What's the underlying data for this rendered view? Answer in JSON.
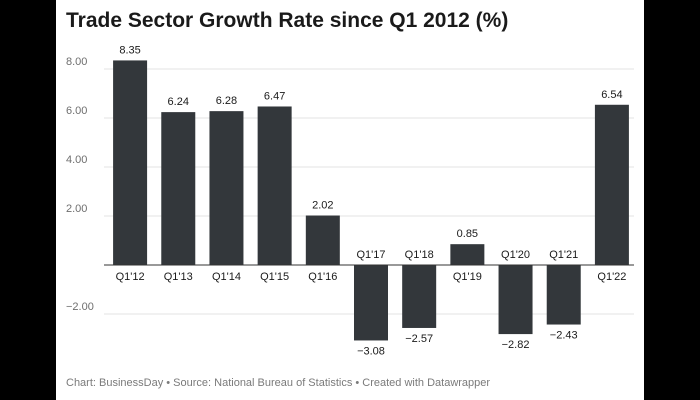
{
  "chart_data": {
    "type": "bar",
    "title": "Trade Sector Growth Rate since Q1 2012 (%)",
    "categories": [
      "Q1'12",
      "Q1'13",
      "Q1'14",
      "Q1'15",
      "Q1'16",
      "Q1'17",
      "Q1'18",
      "Q1'19",
      "Q1'20",
      "Q1'21",
      "Q1'22"
    ],
    "values": [
      8.35,
      6.24,
      6.28,
      6.47,
      2.02,
      -3.08,
      -2.57,
      0.85,
      -2.82,
      -2.43,
      6.54
    ],
    "value_labels": [
      "8.35",
      "6.24",
      "6.28",
      "6.47",
      "2.02",
      "−3.08",
      "−2.57",
      "0.85",
      "−2.82",
      "−2.43",
      "6.54"
    ],
    "y_ticks": [
      -2,
      2,
      4,
      6,
      8
    ],
    "y_tick_labels": [
      "−2.00",
      "2.00",
      "4.00",
      "6.00",
      "8.00"
    ],
    "ylim": [
      -3.6,
      8.8
    ],
    "grid": true,
    "bar_color": "#33373b",
    "footer": "Chart: BusinessDay • Source: National Bureau of Statistics • Created with Datawrapper"
  }
}
